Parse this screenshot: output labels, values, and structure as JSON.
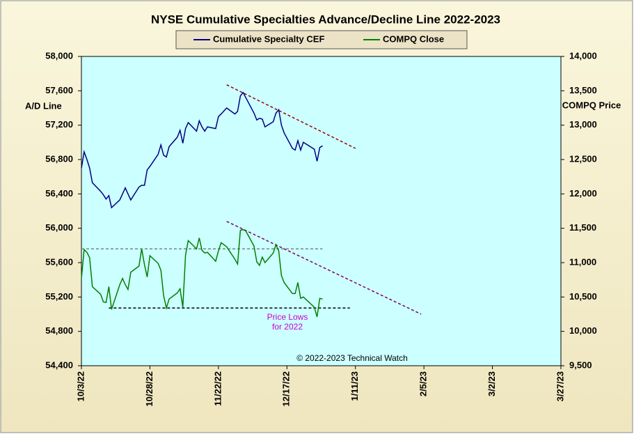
{
  "chart_data": {
    "type": "line",
    "title": "NYSE Cumulative  Specialties  Advance/Decline  Line  2022-2023",
    "y_label": "A/D Line",
    "y2_label": "COMPQ Price",
    "annotations": [
      "Price Lows",
      "for 2022",
      "© 2022-2023  Technical Watch"
    ],
    "x": [
      "10/3/22",
      "10/4/22",
      "10/5/22",
      "10/6/22",
      "10/7/22",
      "10/10/22",
      "10/11/22",
      "10/12/22",
      "10/13/22",
      "10/14/22",
      "10/17/22",
      "10/18/22",
      "10/19/22",
      "10/20/22",
      "10/21/22",
      "10/24/22",
      "10/25/22",
      "10/26/22",
      "10/27/22",
      "10/28/22",
      "10/31/22",
      "11/1/22",
      "11/2/22",
      "11/3/22",
      "11/4/22",
      "11/7/22",
      "11/8/22",
      "11/9/22",
      "11/10/22",
      "11/11/22",
      "11/14/22",
      "11/15/22",
      "11/16/22",
      "11/17/22",
      "11/18/22",
      "11/21/22",
      "11/22/22",
      "11/23/22",
      "11/25/22",
      "11/28/22",
      "11/29/22",
      "11/30/22",
      "12/1/22",
      "12/2/22",
      "12/5/22",
      "12/6/22",
      "12/7/22",
      "12/8/22",
      "12/9/22",
      "12/12/22",
      "12/13/22",
      "12/14/22",
      "12/15/22",
      "12/16/22",
      "12/19/22",
      "12/20/22",
      "12/21/22",
      "12/22/22",
      "12/23/22",
      "12/27/22",
      "12/28/22",
      "12/29/22",
      "12/30/22"
    ],
    "series": [
      {
        "name": "Cumulative Specialty CEF",
        "color": "#000080",
        "axis": "y",
        "values": [
          56700,
          56890,
          56800,
          56700,
          56530,
          56430,
          56390,
          56340,
          56380,
          56240,
          56330,
          56400,
          56470,
          56400,
          56330,
          56480,
          56500,
          56500,
          56680,
          56720,
          56860,
          56970,
          56850,
          56830,
          56950,
          57060,
          57140,
          56990,
          57160,
          57230,
          57130,
          57250,
          57180,
          57130,
          57180,
          57160,
          57300,
          57330,
          57400,
          57330,
          57360,
          57540,
          57580,
          57520,
          57340,
          57260,
          57280,
          57270,
          57180,
          57240,
          57340,
          57380,
          57200,
          57110,
          56930,
          56910,
          57020,
          56910,
          57000,
          56920,
          56780,
          56940,
          56960
        ]
      },
      {
        "name": "COMPQ Close",
        "color": "#008000",
        "axis": "y2",
        "values": [
          10770,
          11190,
          11150,
          11070,
          10650,
          10540,
          10430,
          10420,
          10650,
          10320,
          10680,
          10770,
          10680,
          10610,
          10860,
          10950,
          11200,
          10970,
          10790,
          11100,
          10990,
          10890,
          10520,
          10340,
          10470,
          10560,
          10620,
          10350,
          11110,
          11320,
          11200,
          11360,
          11180,
          11140,
          11150,
          11020,
          11170,
          11290,
          11230,
          11050,
          10980,
          11470,
          11480,
          11460,
          11240,
          11010,
          10960,
          11080,
          11000,
          11140,
          11260,
          11170,
          10810,
          10710,
          10550,
          10550,
          10710,
          10480,
          10500,
          10350,
          10210,
          10480,
          10470
        ]
      }
    ],
    "trendlines": [
      {
        "x": [
          "11/25/22",
          "1/11/23"
        ],
        "y": [
          57670,
          56930
        ],
        "axis": "y",
        "color": "#990000"
      },
      {
        "x": [
          "11/25/22",
          "2/4/23"
        ],
        "y": [
          11600,
          10250
        ],
        "axis": "y2",
        "color": "#800060"
      },
      {
        "x": [
          "10/3/22",
          "12/30/22"
        ],
        "y": [
          11200,
          11200
        ],
        "axis": "y2",
        "color": "#808080"
      },
      {
        "x": [
          "10/13/22",
          "1/9/23"
        ],
        "y": [
          10340,
          10340
        ],
        "axis": "y2",
        "color": "#000000"
      }
    ],
    "xlim": [
      "10/3/22",
      "3/27/23"
    ],
    "xticks": [
      "10/3/22",
      "10/28/22",
      "11/22/22",
      "12/17/22",
      "1/11/23",
      "2/5/23",
      "3/2/23",
      "3/27/23"
    ],
    "ylim": [
      54400,
      58000
    ],
    "yticks": [
      {
        "value": 54400,
        "label": "54,400"
      },
      {
        "value": 54800,
        "label": "54,800"
      },
      {
        "value": 55200,
        "label": "55,200"
      },
      {
        "value": 55600,
        "label": "55,600"
      },
      {
        "value": 56000,
        "label": "56,000"
      },
      {
        "value": 56400,
        "label": "56,400"
      },
      {
        "value": 56800,
        "label": "56,800"
      },
      {
        "value": 57200,
        "label": "57,200"
      },
      {
        "value": 57600,
        "label": "57,600"
      },
      {
        "value": 58000,
        "label": "58,000"
      }
    ],
    "y2lim": [
      9500,
      14000
    ],
    "y2ticks": [
      {
        "value": 9500,
        "label": "9,500"
      },
      {
        "value": 10000,
        "label": "10,000"
      },
      {
        "value": 10500,
        "label": "10,500"
      },
      {
        "value": 11000,
        "label": "11,000"
      },
      {
        "value": 11500,
        "label": "11,500"
      },
      {
        "value": 12000,
        "label": "12,000"
      },
      {
        "value": 12500,
        "label": "12,500"
      },
      {
        "value": 13000,
        "label": "13,000"
      },
      {
        "value": 13500,
        "label": "13,500"
      },
      {
        "value": 14000,
        "label": "14,000"
      }
    ]
  }
}
